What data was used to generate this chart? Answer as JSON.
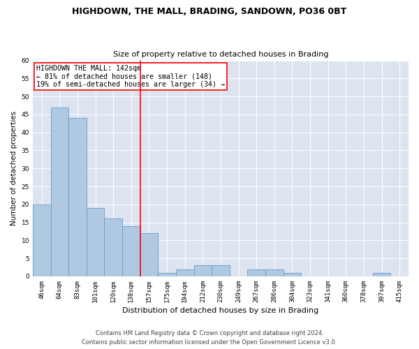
{
  "title": "HIGHDOWN, THE MALL, BRADING, SANDOWN, PO36 0BT",
  "subtitle": "Size of property relative to detached houses in Brading",
  "xlabel": "Distribution of detached houses by size in Brading",
  "ylabel": "Number of detached properties",
  "categories": [
    "46sqm",
    "64sqm",
    "83sqm",
    "101sqm",
    "120sqm",
    "138sqm",
    "157sqm",
    "175sqm",
    "194sqm",
    "212sqm",
    "230sqm",
    "249sqm",
    "267sqm",
    "286sqm",
    "304sqm",
    "323sqm",
    "341sqm",
    "360sqm",
    "378sqm",
    "397sqm",
    "415sqm"
  ],
  "values": [
    20,
    47,
    44,
    19,
    16,
    14,
    12,
    1,
    2,
    3,
    3,
    0,
    2,
    2,
    1,
    0,
    0,
    0,
    0,
    1,
    0
  ],
  "bar_color": "#afc9e3",
  "bar_edge_color": "#6699cc",
  "vline_x": 5.5,
  "vline_color": "red",
  "annotation_title": "HIGHDOWN THE MALL: 142sqm",
  "annotation_line1": "← 81% of detached houses are smaller (148)",
  "annotation_line2": "19% of semi-detached houses are larger (34) →",
  "annotation_box_color": "white",
  "annotation_box_edge": "red",
  "ylim": [
    0,
    60
  ],
  "yticks": [
    0,
    5,
    10,
    15,
    20,
    25,
    30,
    35,
    40,
    45,
    50,
    55,
    60
  ],
  "bg_color": "#dde4f0",
  "footer1": "Contains HM Land Registry data © Crown copyright and database right 2024.",
  "footer2": "Contains public sector information licensed under the Open Government Licence v3.0."
}
